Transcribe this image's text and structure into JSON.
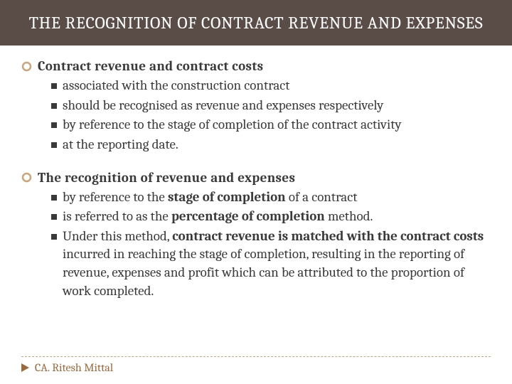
{
  "colors": {
    "titlebar_bg": "#5a4d47",
    "titlebar_fg": "#ffffff",
    "body_bg": "#ffffff",
    "text": "#3a3a3a",
    "accent": "#c9a67a",
    "footer_text": "#9a6a3e",
    "bullet": "#3a3a3a"
  },
  "typography": {
    "title_fontsize": 24,
    "heading_fontsize": 19,
    "body_fontsize": 19,
    "footer_fontsize": 16,
    "font_family": "Cambria, Georgia, serif"
  },
  "title": "THE RECOGNITION OF CONTRACT REVENUE AND EXPENSES",
  "sections": [
    {
      "heading": "Contract revenue and contract costs",
      "items_html": [
        "associated with the construction contract",
        "should be recognised as revenue and expenses respectively",
        "by reference to the stage of completion of the contract activity",
        "at the reporting date."
      ]
    },
    {
      "heading": "The recognition of revenue and expenses",
      "items_html": [
        "by reference to the <span class=\"bold\">stage of completion</span> of a contract",
        "is referred to as the <span class=\"bold\">percentage of completion</span> method.",
        "Under this method, <span class=\"bold\">contract revenue is matched with the contract costs</span> incurred in reaching the stage of completion, resulting in the reporting of revenue, expenses and profit which can be attributed to the proportion of work completed."
      ]
    }
  ],
  "footer": {
    "author": "CA. Ritesh Mittal"
  },
  "icons": {
    "ring": "hollow-circle",
    "square": "filled-square",
    "triangle": "right-triangle"
  }
}
